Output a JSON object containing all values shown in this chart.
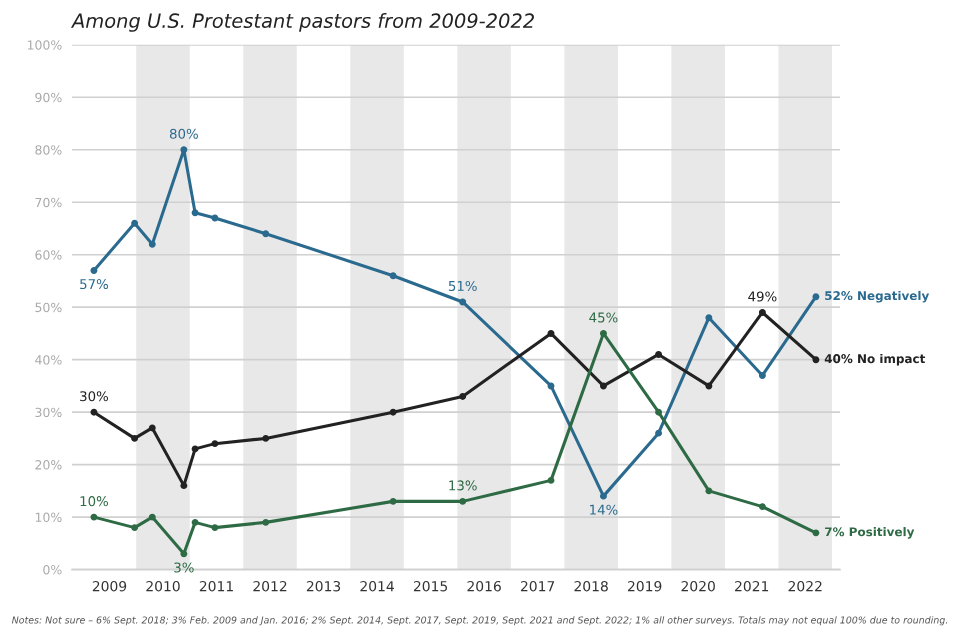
{
  "chart_data": {
    "type": "line",
    "title": "Among U.S. Protestant pastors from 2009-2022",
    "x": [
      2008.71,
      2009.47,
      2009.8,
      2010.39,
      2010.6,
      2010.97,
      2011.92,
      2014.3,
      2015.6,
      2017.25,
      2018.23,
      2019.26,
      2020.2,
      2021.2,
      2022.2
    ],
    "series": [
      {
        "color": "#2b6a8f",
        "values": [
          57,
          66,
          62,
          80,
          68,
          67,
          64,
          56,
          51,
          35,
          14,
          26,
          48,
          37,
          52
        ]
      },
      {
        "color": "#222222",
        "values": [
          30,
          25,
          27,
          16,
          23,
          24,
          25,
          30,
          33,
          45,
          35,
          41,
          35,
          49,
          40
        ]
      },
      {
        "color": "#2e6b45",
        "values": [
          10,
          8,
          10,
          3,
          9,
          8,
          9,
          13,
          13,
          17,
          45,
          30,
          15,
          12,
          7
        ]
      }
    ],
    "xlim": [
      2008.3,
      2022.65
    ],
    "xticks": [
      2009,
      2010,
      2011,
      2012,
      2013,
      2014,
      2015,
      2016,
      2017,
      2018,
      2019,
      2020,
      2021,
      2022
    ],
    "ylim": [
      0,
      100
    ],
    "yticks": [
      {
        "value": 0,
        "label": "0%"
      },
      {
        "value": 10,
        "label": "10%"
      },
      {
        "value": 20,
        "label": "20%"
      },
      {
        "value": 30,
        "label": "30%"
      },
      {
        "value": 40,
        "label": "40%"
      },
      {
        "value": 50,
        "label": "50%"
      },
      {
        "value": 60,
        "label": "60%"
      },
      {
        "value": 70,
        "label": "70%"
      },
      {
        "value": 80,
        "label": "80%"
      },
      {
        "value": 90,
        "label": "90%"
      },
      {
        "value": 100,
        "label": "100%"
      }
    ],
    "bands": [
      {
        "axis": "x",
        "from": 2009.5,
        "to": 2010.5,
        "color": "#e8e8e8"
      },
      {
        "axis": "x",
        "from": 2011.5,
        "to": 2012.5,
        "color": "#e8e8e8"
      },
      {
        "axis": "x",
        "from": 2013.5,
        "to": 2014.5,
        "color": "#e8e8e8"
      },
      {
        "axis": "x",
        "from": 2015.5,
        "to": 2016.5,
        "color": "#e8e8e8"
      },
      {
        "axis": "x",
        "from": 2017.5,
        "to": 2018.5,
        "color": "#e8e8e8"
      },
      {
        "axis": "x",
        "from": 2019.5,
        "to": 2020.5,
        "color": "#e8e8e8"
      },
      {
        "axis": "x",
        "from": 2021.5,
        "to": 2022.5,
        "color": "#e8e8e8"
      }
    ],
    "annotations": [
      {
        "text": "57%",
        "x": 2008.71,
        "y": 57
      },
      {
        "text": "80%",
        "x": 2010.39,
        "y": 80
      },
      {
        "text": "51%",
        "x": 2015.6,
        "y": 51
      },
      {
        "text": "14%",
        "x": 2018.23,
        "y": 14
      },
      {
        "text": "52% Negatively",
        "x": 2022.2,
        "y": 52
      },
      {
        "text": "30%",
        "x": 2008.71,
        "y": 30
      },
      {
        "text": "49%",
        "x": 2021.2,
        "y": 49
      },
      {
        "text": "40% No impact",
        "x": 2022.2,
        "y": 40
      },
      {
        "text": "10%",
        "x": 2008.71,
        "y": 10
      },
      {
        "text": "3%",
        "x": 2010.39,
        "y": 3
      },
      {
        "text": "13%",
        "x": 2015.6,
        "y": 13
      },
      {
        "text": "45%",
        "x": 2018.23,
        "y": 45
      },
      {
        "text": "7% Positively",
        "x": 2022.2,
        "y": 7
      },
      "Notes: Not sure – 6% Sept. 2018; 3% Feb. 2009 and Jan. 2016; 2% Sept. 2014, Sept. 2017, Sept. 2019, Sept. 2021 and Sept. 2022; 1% all other surveys. Totals may not equal 100% due to rounding."
    ],
    "grid": "y",
    "marker": "circle",
    "line_style": "solid",
    "legend": false
  }
}
